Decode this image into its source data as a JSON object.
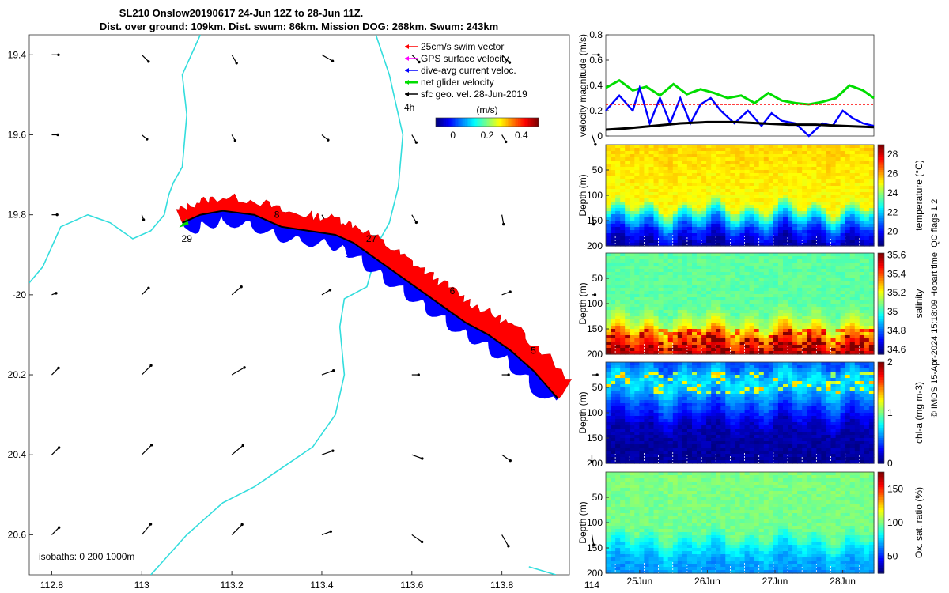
{
  "figure": {
    "title_line1": "SL210 Onslow20190617 24-Jun 12Z to 28-Jun 11Z.",
    "title_line2": "Dist. over ground: 109km. Dist. swum: 86km. Mission DOG: 268km. Swum: 243km",
    "credit": "© IMOS 15-Apr-2024 15:18:09 Hobart time. QC flags 1  2"
  },
  "chart_data": [
    {
      "type": "scatter",
      "panel": "map",
      "xlim": [
        112.75,
        113.95
      ],
      "ylim": [
        -20.7,
        -19.35
      ],
      "xticks": [
        112.8,
        113,
        113.2,
        113.4,
        113.6,
        113.8,
        114
      ],
      "xtick_labels": [
        "112.8",
        "113",
        "113.2",
        "113.4",
        "113.6",
        "113.8",
        "114"
      ],
      "yticks": [
        -19.4,
        -19.6,
        -19.8,
        -20,
        -20.2,
        -20.4,
        -20.6
      ],
      "ytick_labels": [
        "19.4",
        "19.6",
        "19.8",
        "-20",
        "20.2",
        "20.4",
        "20.6"
      ],
      "legend": {
        "placement": "top-right",
        "entries": [
          {
            "label": "25cm/s swim vector",
            "color": "#ff0000"
          },
          {
            "label": "GPS surface velocity",
            "color": "#ff00ff"
          },
          {
            "label": "dive-avg current veloc.",
            "color": "#0000ff"
          },
          {
            "label": "net glider velocity",
            "color": "#00dd00"
          },
          {
            "label": "sfc geo. vel. 28-Jun-2019",
            "color": "#000000"
          }
        ],
        "time_label": "4h"
      },
      "colorbar": {
        "label": "(m/s)",
        "ticks": [
          0,
          0.2,
          0.4
        ],
        "tick_labels": [
          "0",
          "0.2",
          "0.4"
        ],
        "range": [
          -0.1,
          0.5
        ]
      },
      "track": {
        "lon": [
          113.09,
          113.13,
          113.18,
          113.25,
          113.31,
          113.37,
          113.43,
          113.47,
          113.52,
          113.57,
          113.62,
          113.67,
          113.72,
          113.77,
          113.82,
          113.87,
          113.925
        ],
        "lat": [
          -19.82,
          -19.8,
          -19.79,
          -19.8,
          -19.83,
          -19.84,
          -19.85,
          -19.87,
          -19.91,
          -19.95,
          -19.99,
          -20.03,
          -20.07,
          -20.1,
          -20.14,
          -20.19,
          -20.26
        ]
      },
      "day_labels": [
        {
          "text": "29",
          "lon": 113.1,
          "lat": -19.86
        },
        {
          "text": "8",
          "lon": 113.3,
          "lat": -19.8
        },
        {
          "text": "27",
          "lon": 113.51,
          "lat": -19.86
        },
        {
          "text": "6",
          "lon": 113.69,
          "lat": -19.99
        },
        {
          "text": "5",
          "lon": 113.87,
          "lat": -20.14
        }
      ],
      "isobath_label": "isobaths: 0   200  1000m",
      "arrow_grid": {
        "lon": [
          112.8,
          113,
          113.2,
          113.4,
          113.6,
          113.8,
          114
        ],
        "lat": [
          -19.4,
          -19.6,
          -19.8,
          -20,
          -20.2,
          -20.4,
          -20.6
        ],
        "angles_deg": [
          [
            0,
            -45,
            -60,
            -30,
            -45,
            -45,
            0
          ],
          [
            0,
            -40,
            -60,
            -40,
            -60,
            -60,
            -70
          ],
          [
            0,
            -70,
            0,
            -60,
            -60,
            -80,
            -80
          ],
          [
            20,
            45,
            40,
            30,
            20,
            20,
            0
          ],
          [
            45,
            45,
            30,
            20,
            0,
            0,
            0
          ],
          [
            45,
            45,
            40,
            20,
            -20,
            -35,
            -90
          ],
          [
            45,
            50,
            45,
            20,
            -35,
            -60,
            -80
          ]
        ],
        "speeds": [
          [
            0.05,
            0.09,
            0.09,
            0.13,
            0.1,
            0.11,
            0.05
          ],
          [
            0.04,
            0.05,
            0.05,
            0.07,
            0.08,
            0.07,
            0.1
          ],
          [
            0.03,
            0.03,
            0.0,
            0.04,
            0.08,
            0.09,
            0.09
          ],
          [
            0.02,
            0.09,
            0.13,
            0.09,
            0.08,
            0.08,
            0.0
          ],
          [
            0.09,
            0.14,
            0.16,
            0.13,
            0.05,
            0.05,
            0.03
          ],
          [
            0.1,
            0.15,
            0.16,
            0.12,
            0.11,
            0.1,
            0.05
          ],
          [
            0.1,
            0.15,
            0.16,
            0.09,
            0.13,
            0.14,
            0.1
          ]
        ]
      }
    },
    {
      "type": "line",
      "panel": "velocity",
      "ylabel": "velocity magnitude (m/s)",
      "ylim": [
        0,
        0.8
      ],
      "yticks": [
        0,
        0.2,
        0.4,
        0.6,
        0.8
      ],
      "xlim": [
        24.5,
        28.46
      ],
      "series": [
        {
          "color": "#00dd00",
          "x": [
            24.5,
            24.7,
            24.9,
            25.1,
            25.3,
            25.5,
            25.7,
            25.9,
            26.1,
            26.3,
            26.5,
            26.7,
            26.9,
            27.1,
            27.3,
            27.5,
            27.7,
            27.9,
            28.1,
            28.3,
            28.46
          ],
          "y": [
            0.38,
            0.44,
            0.36,
            0.39,
            0.32,
            0.41,
            0.33,
            0.37,
            0.34,
            0.3,
            0.32,
            0.26,
            0.34,
            0.28,
            0.26,
            0.25,
            0.27,
            0.3,
            0.4,
            0.36,
            0.3
          ]
        },
        {
          "color": "#0000ff",
          "x": [
            24.5,
            24.7,
            24.9,
            25.0,
            25.15,
            25.3,
            25.45,
            25.6,
            25.75,
            25.9,
            26.05,
            26.2,
            26.4,
            26.6,
            26.8,
            26.95,
            27.1,
            27.3,
            27.5,
            27.6,
            27.7,
            27.85,
            28.0,
            28.15,
            28.3,
            28.46
          ],
          "y": [
            0.2,
            0.32,
            0.2,
            0.38,
            0.1,
            0.3,
            0.1,
            0.3,
            0.1,
            0.25,
            0.3,
            0.2,
            0.1,
            0.2,
            0.08,
            0.18,
            0.12,
            0.1,
            0.0,
            0.05,
            0.1,
            0.08,
            0.2,
            0.14,
            0.1,
            0.08
          ]
        },
        {
          "color": "#000000",
          "x": [
            24.5,
            24.8,
            25.2,
            25.6,
            26.0,
            26.4,
            26.8,
            27.2,
            27.6,
            28.0,
            28.46
          ],
          "y": [
            0.05,
            0.06,
            0.08,
            0.1,
            0.11,
            0.11,
            0.1,
            0.09,
            0.09,
            0.08,
            0.07
          ]
        },
        {
          "color": "#ff0000",
          "x": [
            24.5,
            28.46
          ],
          "y": [
            0.25,
            0.25
          ]
        }
      ]
    },
    {
      "type": "heatmap",
      "panel": "temperature",
      "ylabel": "Depth (m)",
      "yticks": [
        50,
        100,
        150,
        200
      ],
      "ylim": [
        200,
        0
      ],
      "colorbar_label": "temperature (°C)",
      "colorbar_ticks": [
        20,
        22,
        24,
        26,
        28
      ],
      "clim": [
        18.5,
        29
      ],
      "profile_stops": [
        [
          0,
          25.5
        ],
        [
          120,
          25.0
        ],
        [
          140,
          22.5
        ],
        [
          165,
          20.5
        ],
        [
          200,
          18.8
        ]
      ]
    },
    {
      "type": "heatmap",
      "panel": "salinity",
      "ylabel": "Depth (m)",
      "yticks": [
        50,
        100,
        150,
        200
      ],
      "ylim": [
        200,
        0
      ],
      "colorbar_label": "salinity",
      "colorbar_ticks": [
        34.6,
        34.8,
        35,
        35.2,
        35.4,
        35.6
      ],
      "clim": [
        34.55,
        35.62
      ],
      "profile_stops": [
        [
          0,
          35.05
        ],
        [
          110,
          35.05
        ],
        [
          140,
          35.15
        ],
        [
          165,
          35.35
        ],
        [
          200,
          35.55
        ]
      ]
    },
    {
      "type": "heatmap",
      "panel": "chlorophyll",
      "ylabel": "Depth (m)",
      "yticks": [
        50,
        100,
        150,
        200
      ],
      "ylim": [
        200,
        0
      ],
      "colorbar_label": "chl-a (mg m-3)",
      "colorbar_ticks": [
        0,
        1,
        2
      ],
      "clim": [
        0,
        2
      ],
      "profile_stops": [
        [
          0,
          0.4
        ],
        [
          40,
          0.75
        ],
        [
          80,
          0.45
        ],
        [
          130,
          0.1
        ],
        [
          200,
          0.05
        ]
      ]
    },
    {
      "type": "heatmap",
      "panel": "oxygen",
      "ylabel": "Depth (m)",
      "yticks": [
        50,
        100,
        150,
        200
      ],
      "ylim": [
        200,
        0
      ],
      "colorbar_label": "Ox. sat. ratio (%)",
      "colorbar_ticks": [
        50,
        100,
        150
      ],
      "clim": [
        25,
        175
      ],
      "profile_stops": [
        [
          0,
          100
        ],
        [
          120,
          98
        ],
        [
          150,
          78
        ],
        [
          180,
          68
        ],
        [
          200,
          65
        ]
      ],
      "xtick_labels": [
        "25Jun",
        "26Jun",
        "27Jun",
        "28Jun"
      ],
      "xticks": [
        25,
        26,
        27,
        28
      ],
      "xlim": [
        24.5,
        28.46
      ]
    }
  ]
}
